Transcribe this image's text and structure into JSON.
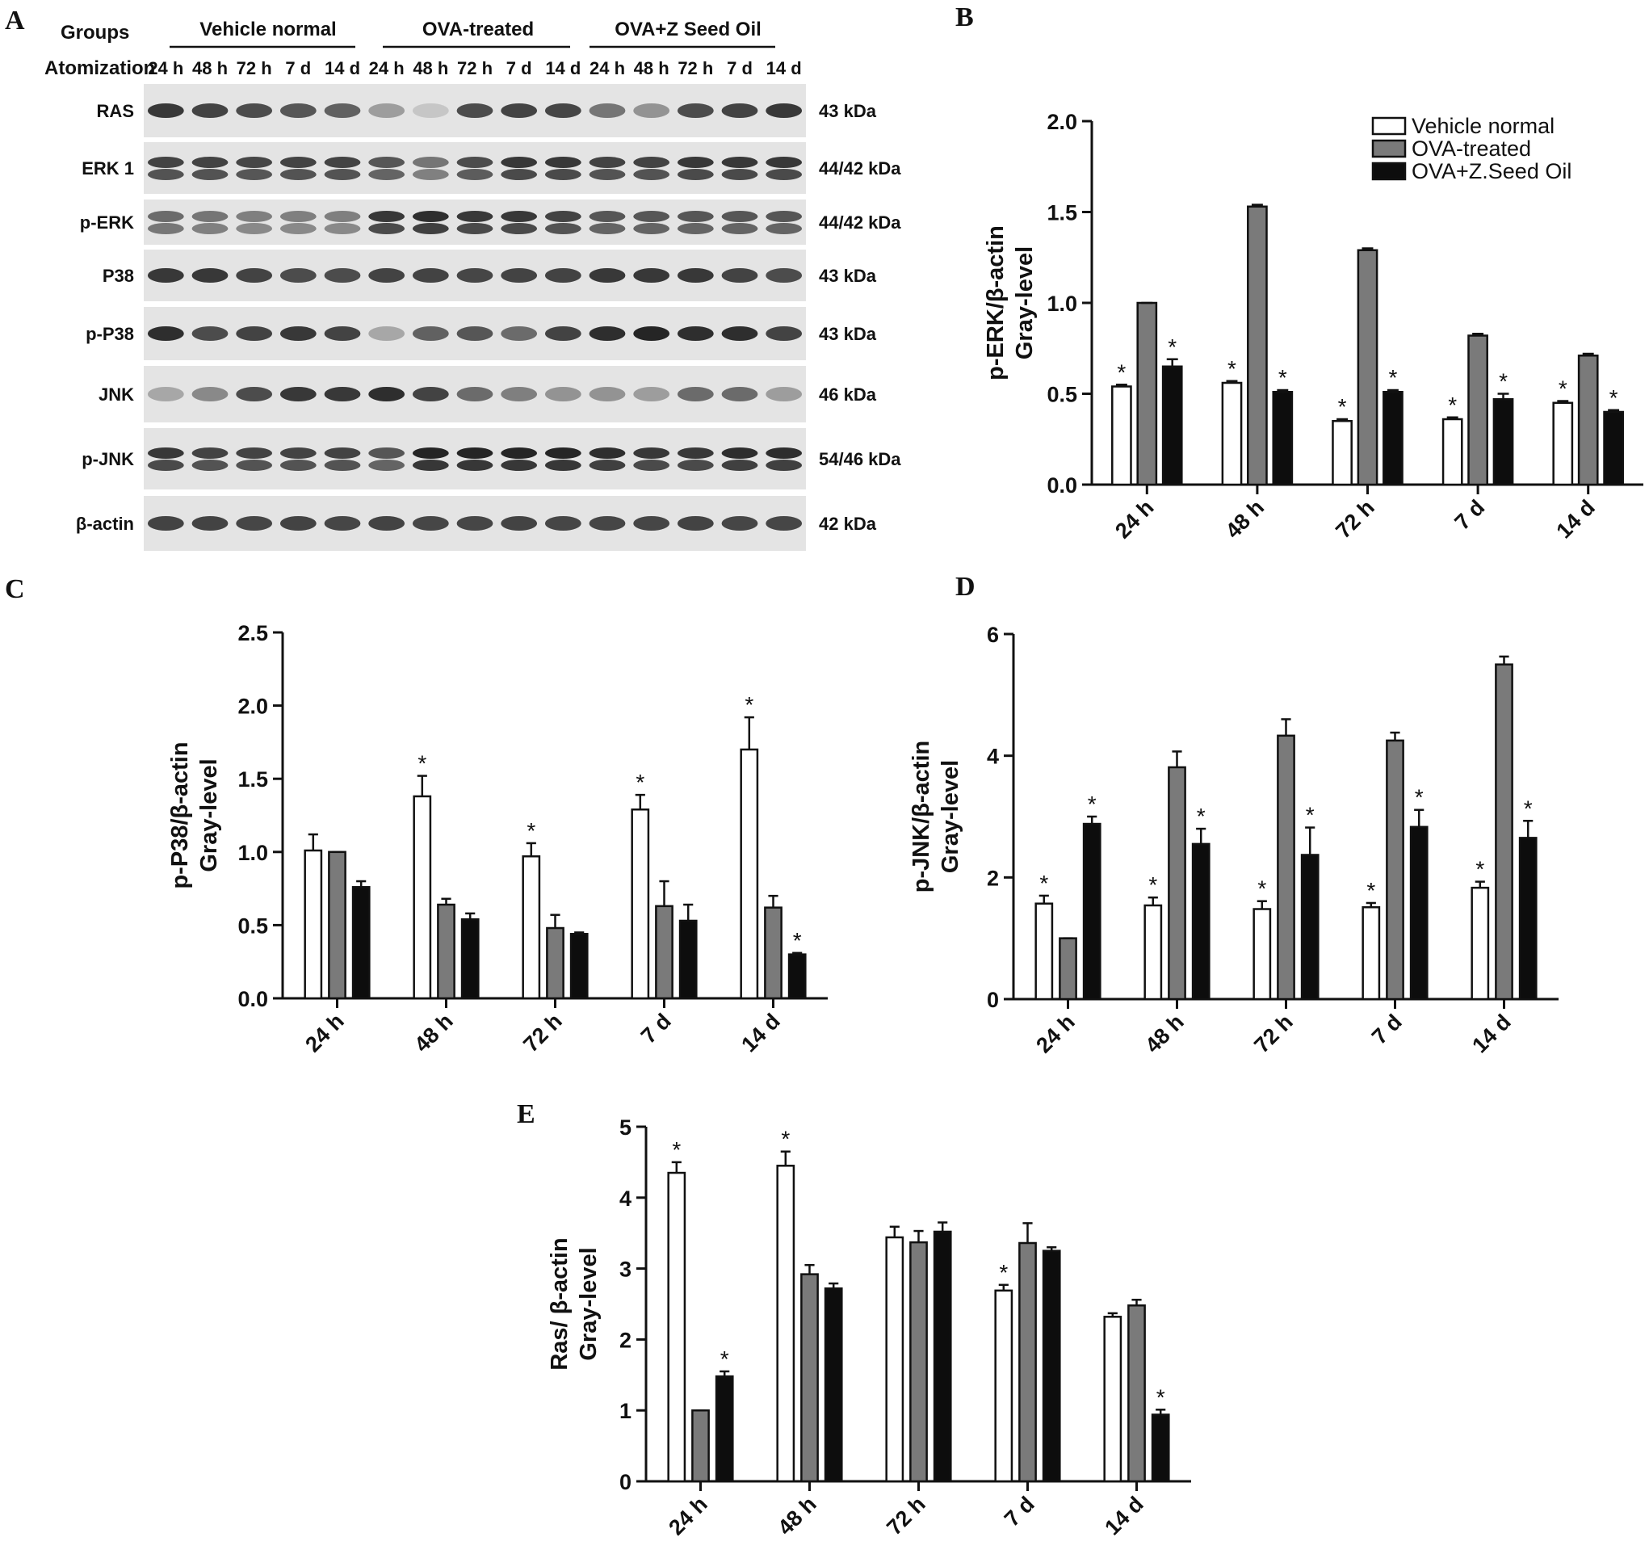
{
  "panel_labels": [
    "A",
    "B",
    "C",
    "D",
    "E"
  ],
  "blot": {
    "groups_label": "Groups",
    "atomization_label": "Atomization",
    "groups": [
      "Vehicle normal",
      "OVA-treated",
      "OVA+Z Seed Oil"
    ],
    "lanes": [
      "24 h",
      "48 h",
      "72 h",
      "7 d",
      "14 d"
    ],
    "rows": [
      {
        "name": "RAS",
        "kda": "43 kDa",
        "intensity": [
          0.85,
          0.8,
          0.75,
          0.7,
          0.65,
          0.35,
          0.15,
          0.75,
          0.8,
          0.78,
          0.55,
          0.4,
          0.75,
          0.8,
          0.85
        ]
      },
      {
        "name": "ERK 1",
        "kda": "44/42 kDa",
        "intensity": [
          0.8,
          0.8,
          0.78,
          0.8,
          0.8,
          0.7,
          0.55,
          0.75,
          0.85,
          0.85,
          0.8,
          0.8,
          0.85,
          0.85,
          0.85
        ]
      },
      {
        "name": "p-ERK",
        "kda": "44/42 kDa",
        "intensity": [
          0.6,
          0.55,
          0.5,
          0.5,
          0.5,
          0.85,
          0.9,
          0.85,
          0.85,
          0.8,
          0.7,
          0.7,
          0.7,
          0.7,
          0.7
        ]
      },
      {
        "name": "P38",
        "kda": "43 kDa",
        "intensity": [
          0.85,
          0.85,
          0.8,
          0.75,
          0.75,
          0.8,
          0.8,
          0.78,
          0.8,
          0.8,
          0.85,
          0.85,
          0.85,
          0.8,
          0.75
        ]
      },
      {
        "name": "p-P38",
        "kda": "43 kDa",
        "intensity": [
          0.9,
          0.75,
          0.8,
          0.85,
          0.8,
          0.3,
          0.65,
          0.7,
          0.6,
          0.8,
          0.9,
          0.95,
          0.9,
          0.9,
          0.8
        ]
      },
      {
        "name": "JNK",
        "kda": "46 kDa",
        "intensity": [
          0.3,
          0.45,
          0.75,
          0.85,
          0.85,
          0.9,
          0.8,
          0.6,
          0.5,
          0.4,
          0.4,
          0.35,
          0.6,
          0.6,
          0.35
        ]
      },
      {
        "name": "p-JNK",
        "kda": "54/46 kDa",
        "intensity": [
          0.85,
          0.8,
          0.8,
          0.8,
          0.8,
          0.7,
          0.95,
          0.95,
          0.95,
          0.95,
          0.9,
          0.85,
          0.85,
          0.9,
          0.9
        ]
      },
      {
        "name": "β-actin",
        "kda": "42 kDa",
        "intensity": [
          0.8,
          0.8,
          0.78,
          0.8,
          0.78,
          0.8,
          0.78,
          0.78,
          0.8,
          0.78,
          0.78,
          0.78,
          0.8,
          0.78,
          0.78
        ]
      }
    ]
  },
  "colors": {
    "vehicle": "#ffffff",
    "ova": "#7a7a7a",
    "zseed": "#0d0d0d",
    "axis": "#111111",
    "blot_bg": "#e4e4e4",
    "band": "#1a1a1a"
  },
  "chart_data": [
    {
      "panel": "B",
      "type": "bar",
      "ylabel": "p-ERK/β-actin Gray-level",
      "ylim": [
        0,
        2.0
      ],
      "yticks": [
        "0.0",
        "0.5",
        "1.0",
        "1.5",
        "2.0"
      ],
      "categories": [
        "24 h",
        "48 h",
        "72 h",
        "7 d",
        "14 d"
      ],
      "legend": "top-right",
      "series": [
        {
          "name": "Vehicle normal",
          "values": [
            0.54,
            0.56,
            0.35,
            0.36,
            0.45
          ],
          "errors": [
            0.01,
            0.01,
            0.01,
            0.01,
            0.01
          ],
          "stars": [
            true,
            true,
            true,
            true,
            true
          ]
        },
        {
          "name": "OVA-treated",
          "values": [
            1.0,
            1.53,
            1.29,
            0.82,
            0.71
          ],
          "errors": [
            0.0,
            0.01,
            0.01,
            0.01,
            0.01
          ],
          "stars": [
            false,
            false,
            false,
            false,
            false
          ]
        },
        {
          "name": "OVA+Z.Seed Oil",
          "values": [
            0.65,
            0.51,
            0.51,
            0.47,
            0.4
          ],
          "errors": [
            0.04,
            0.01,
            0.01,
            0.03,
            0.01
          ],
          "stars": [
            true,
            true,
            true,
            true,
            true
          ]
        }
      ]
    },
    {
      "panel": "C",
      "type": "bar",
      "ylabel": "p-P38/β-actin Gray-level",
      "ylim": [
        0,
        2.5
      ],
      "yticks": [
        "0.0",
        "0.5",
        "1.0",
        "1.5",
        "2.0",
        "2.5"
      ],
      "categories": [
        "24 h",
        "48 h",
        "72 h",
        "7 d",
        "14 d"
      ],
      "series": [
        {
          "name": "Vehicle normal",
          "values": [
            1.01,
            1.38,
            0.97,
            1.29,
            1.7
          ],
          "errors": [
            0.11,
            0.14,
            0.09,
            0.1,
            0.22
          ],
          "stars": [
            false,
            true,
            true,
            true,
            true
          ]
        },
        {
          "name": "OVA-treated",
          "values": [
            1.0,
            0.64,
            0.48,
            0.63,
            0.62
          ],
          "errors": [
            0.0,
            0.04,
            0.09,
            0.17,
            0.08
          ],
          "stars": [
            false,
            false,
            false,
            false,
            false
          ]
        },
        {
          "name": "OVA+Z.Seed Oil",
          "values": [
            0.76,
            0.54,
            0.44,
            0.53,
            0.3
          ],
          "errors": [
            0.04,
            0.04,
            0.01,
            0.11,
            0.01
          ],
          "stars": [
            false,
            false,
            false,
            false,
            true
          ]
        }
      ]
    },
    {
      "panel": "D",
      "type": "bar",
      "ylabel": "p-JNK/β-actin Gray-level",
      "ylim": [
        0,
        6
      ],
      "yticks": [
        "0",
        "2",
        "4",
        "6"
      ],
      "categories": [
        "24 h",
        "48 h",
        "72 h",
        "7 d",
        "14 d"
      ],
      "series": [
        {
          "name": "Vehicle normal",
          "values": [
            1.57,
            1.54,
            1.48,
            1.51,
            1.83
          ],
          "errors": [
            0.13,
            0.13,
            0.13,
            0.07,
            0.1
          ],
          "stars": [
            true,
            true,
            true,
            true,
            true
          ]
        },
        {
          "name": "OVA-treated",
          "values": [
            1.0,
            3.81,
            4.33,
            4.25,
            5.5
          ],
          "errors": [
            0.0,
            0.26,
            0.27,
            0.13,
            0.13
          ],
          "stars": [
            false,
            false,
            false,
            false,
            false
          ]
        },
        {
          "name": "OVA+Z.Seed Oil",
          "values": [
            2.88,
            2.55,
            2.37,
            2.83,
            2.65
          ],
          "errors": [
            0.12,
            0.25,
            0.45,
            0.28,
            0.28
          ],
          "stars": [
            true,
            true,
            true,
            true,
            true
          ]
        }
      ]
    },
    {
      "panel": "E",
      "type": "bar",
      "ylabel": "Ras/ β-actin Gray-level",
      "ylim": [
        0,
        5
      ],
      "yticks": [
        "0",
        "1",
        "2",
        "3",
        "4",
        "5"
      ],
      "categories": [
        "24 h",
        "48 h",
        "72 h",
        "7 d",
        "14 d"
      ],
      "series": [
        {
          "name": "Vehicle normal",
          "values": [
            4.35,
            4.45,
            3.44,
            2.69,
            2.32
          ],
          "errors": [
            0.15,
            0.2,
            0.15,
            0.08,
            0.05
          ],
          "stars": [
            true,
            true,
            false,
            true,
            false
          ]
        },
        {
          "name": "OVA-treated",
          "values": [
            1.0,
            2.92,
            3.37,
            3.36,
            2.48
          ],
          "errors": [
            0.0,
            0.13,
            0.16,
            0.28,
            0.08
          ],
          "stars": [
            false,
            false,
            false,
            false,
            false
          ]
        },
        {
          "name": "OVA+Z.Seed Oil",
          "values": [
            1.48,
            2.72,
            3.52,
            3.25,
            0.94
          ],
          "errors": [
            0.07,
            0.07,
            0.13,
            0.05,
            0.07
          ],
          "stars": [
            true,
            false,
            false,
            false,
            true
          ]
        }
      ]
    }
  ]
}
